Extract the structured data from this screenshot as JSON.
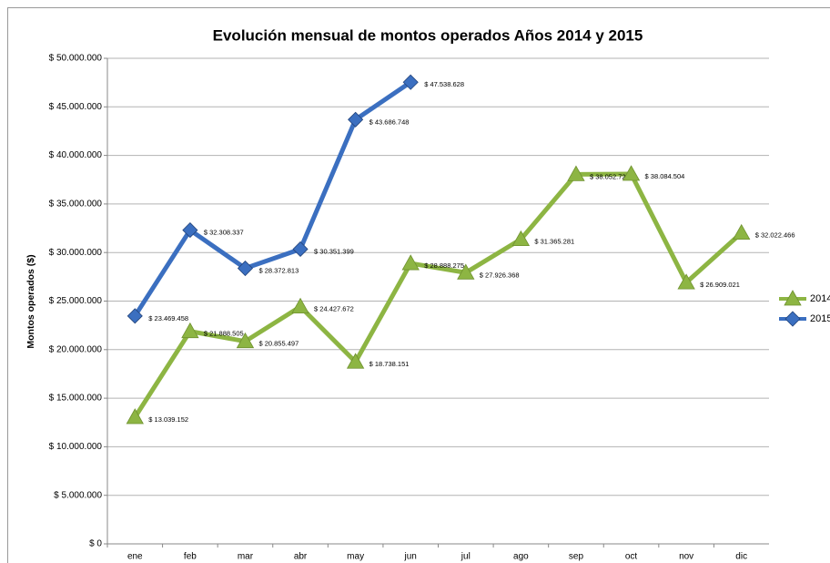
{
  "chart_data": {
    "type": "line",
    "title": "Evolución mensual de montos operados Años 2014 y 2015",
    "ylabel": "Montos operados ($)",
    "categories": [
      "ene",
      "feb",
      "mar",
      "abr",
      "may",
      "jun",
      "jul",
      "ago",
      "sep",
      "oct",
      "nov",
      "dic"
    ],
    "series": [
      {
        "name": "2014",
        "color": "#8db543",
        "marker": "triangle",
        "values": [
          13039152,
          21888505,
          20855497,
          24427672,
          18738151,
          28888275,
          27926368,
          31365281,
          38052725,
          38084504,
          26909021,
          32022466
        ],
        "value_labels": [
          "$ 13.039.152",
          "$ 21.888.505",
          "$ 20.855.497",
          "$ 24.427.672",
          "$ 18.738.151",
          "$ 28.888.275",
          "$ 27.926.368",
          "$ 31.365.281",
          "$ 38.052.725",
          "$ 38.084.504",
          "$ 26.909.021",
          "$ 32.022.466"
        ]
      },
      {
        "name": "2015",
        "color": "#3b6fc0",
        "marker": "diamond",
        "values": [
          23469458,
          32308337,
          28372813,
          30351399,
          43686748,
          47538628,
          null,
          null,
          null,
          null,
          null,
          null
        ],
        "value_labels": [
          "$ 23.469.458",
          "$ 32.308.337",
          "$ 28.372.813",
          "$ 30.351.399",
          "$ 43.686.748",
          "$ 47.538.628",
          null,
          null,
          null,
          null,
          null,
          null
        ]
      }
    ],
    "ylim": [
      0,
      50000000
    ],
    "yticks": [
      {
        "value": 0,
        "label": "$ 0"
      },
      {
        "value": 5000000,
        "label": "$ 5.000.000"
      },
      {
        "value": 10000000,
        "label": "$ 10.000.000"
      },
      {
        "value": 15000000,
        "label": "$ 15.000.000"
      },
      {
        "value": 20000000,
        "label": "$ 20.000.000"
      },
      {
        "value": 25000000,
        "label": "$ 25.000.000"
      },
      {
        "value": 30000000,
        "label": "$ 30.000.000"
      },
      {
        "value": 35000000,
        "label": "$ 35.000.000"
      },
      {
        "value": 40000000,
        "label": "$ 40.000.000"
      },
      {
        "value": 45000000,
        "label": "$ 45.000.000"
      },
      {
        "value": 50000000,
        "label": "$ 50.000.000"
      }
    ],
    "grid": true,
    "legend": "right"
  }
}
